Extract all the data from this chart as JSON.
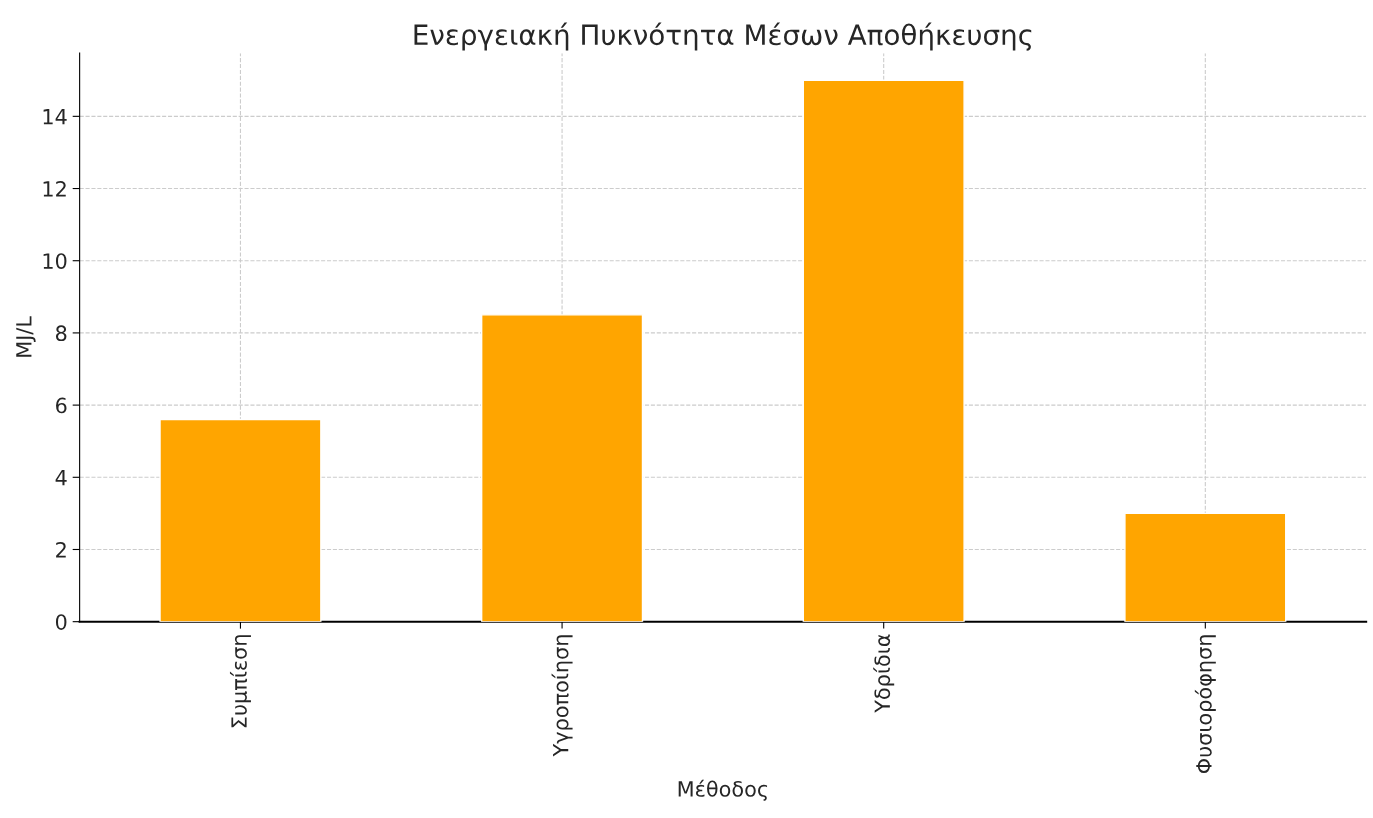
{
  "chart_data": {
    "type": "bar",
    "title": "Ενεργειακή Πυκνότητα Μέσων Αποθήκευσης",
    "xlabel": "Μέθοδος",
    "ylabel": "MJ/L",
    "categories": [
      "Συμπίεση",
      "Υγροποίηση",
      "Υδρίδια",
      "Φυσιορόφηση"
    ],
    "values": [
      5.6,
      8.5,
      15,
      3
    ],
    "color": "#ffa500",
    "ylim": [
      0,
      15.75
    ],
    "yticks": [
      0,
      2,
      4,
      6,
      8,
      10,
      12,
      14
    ],
    "grid": true
  }
}
